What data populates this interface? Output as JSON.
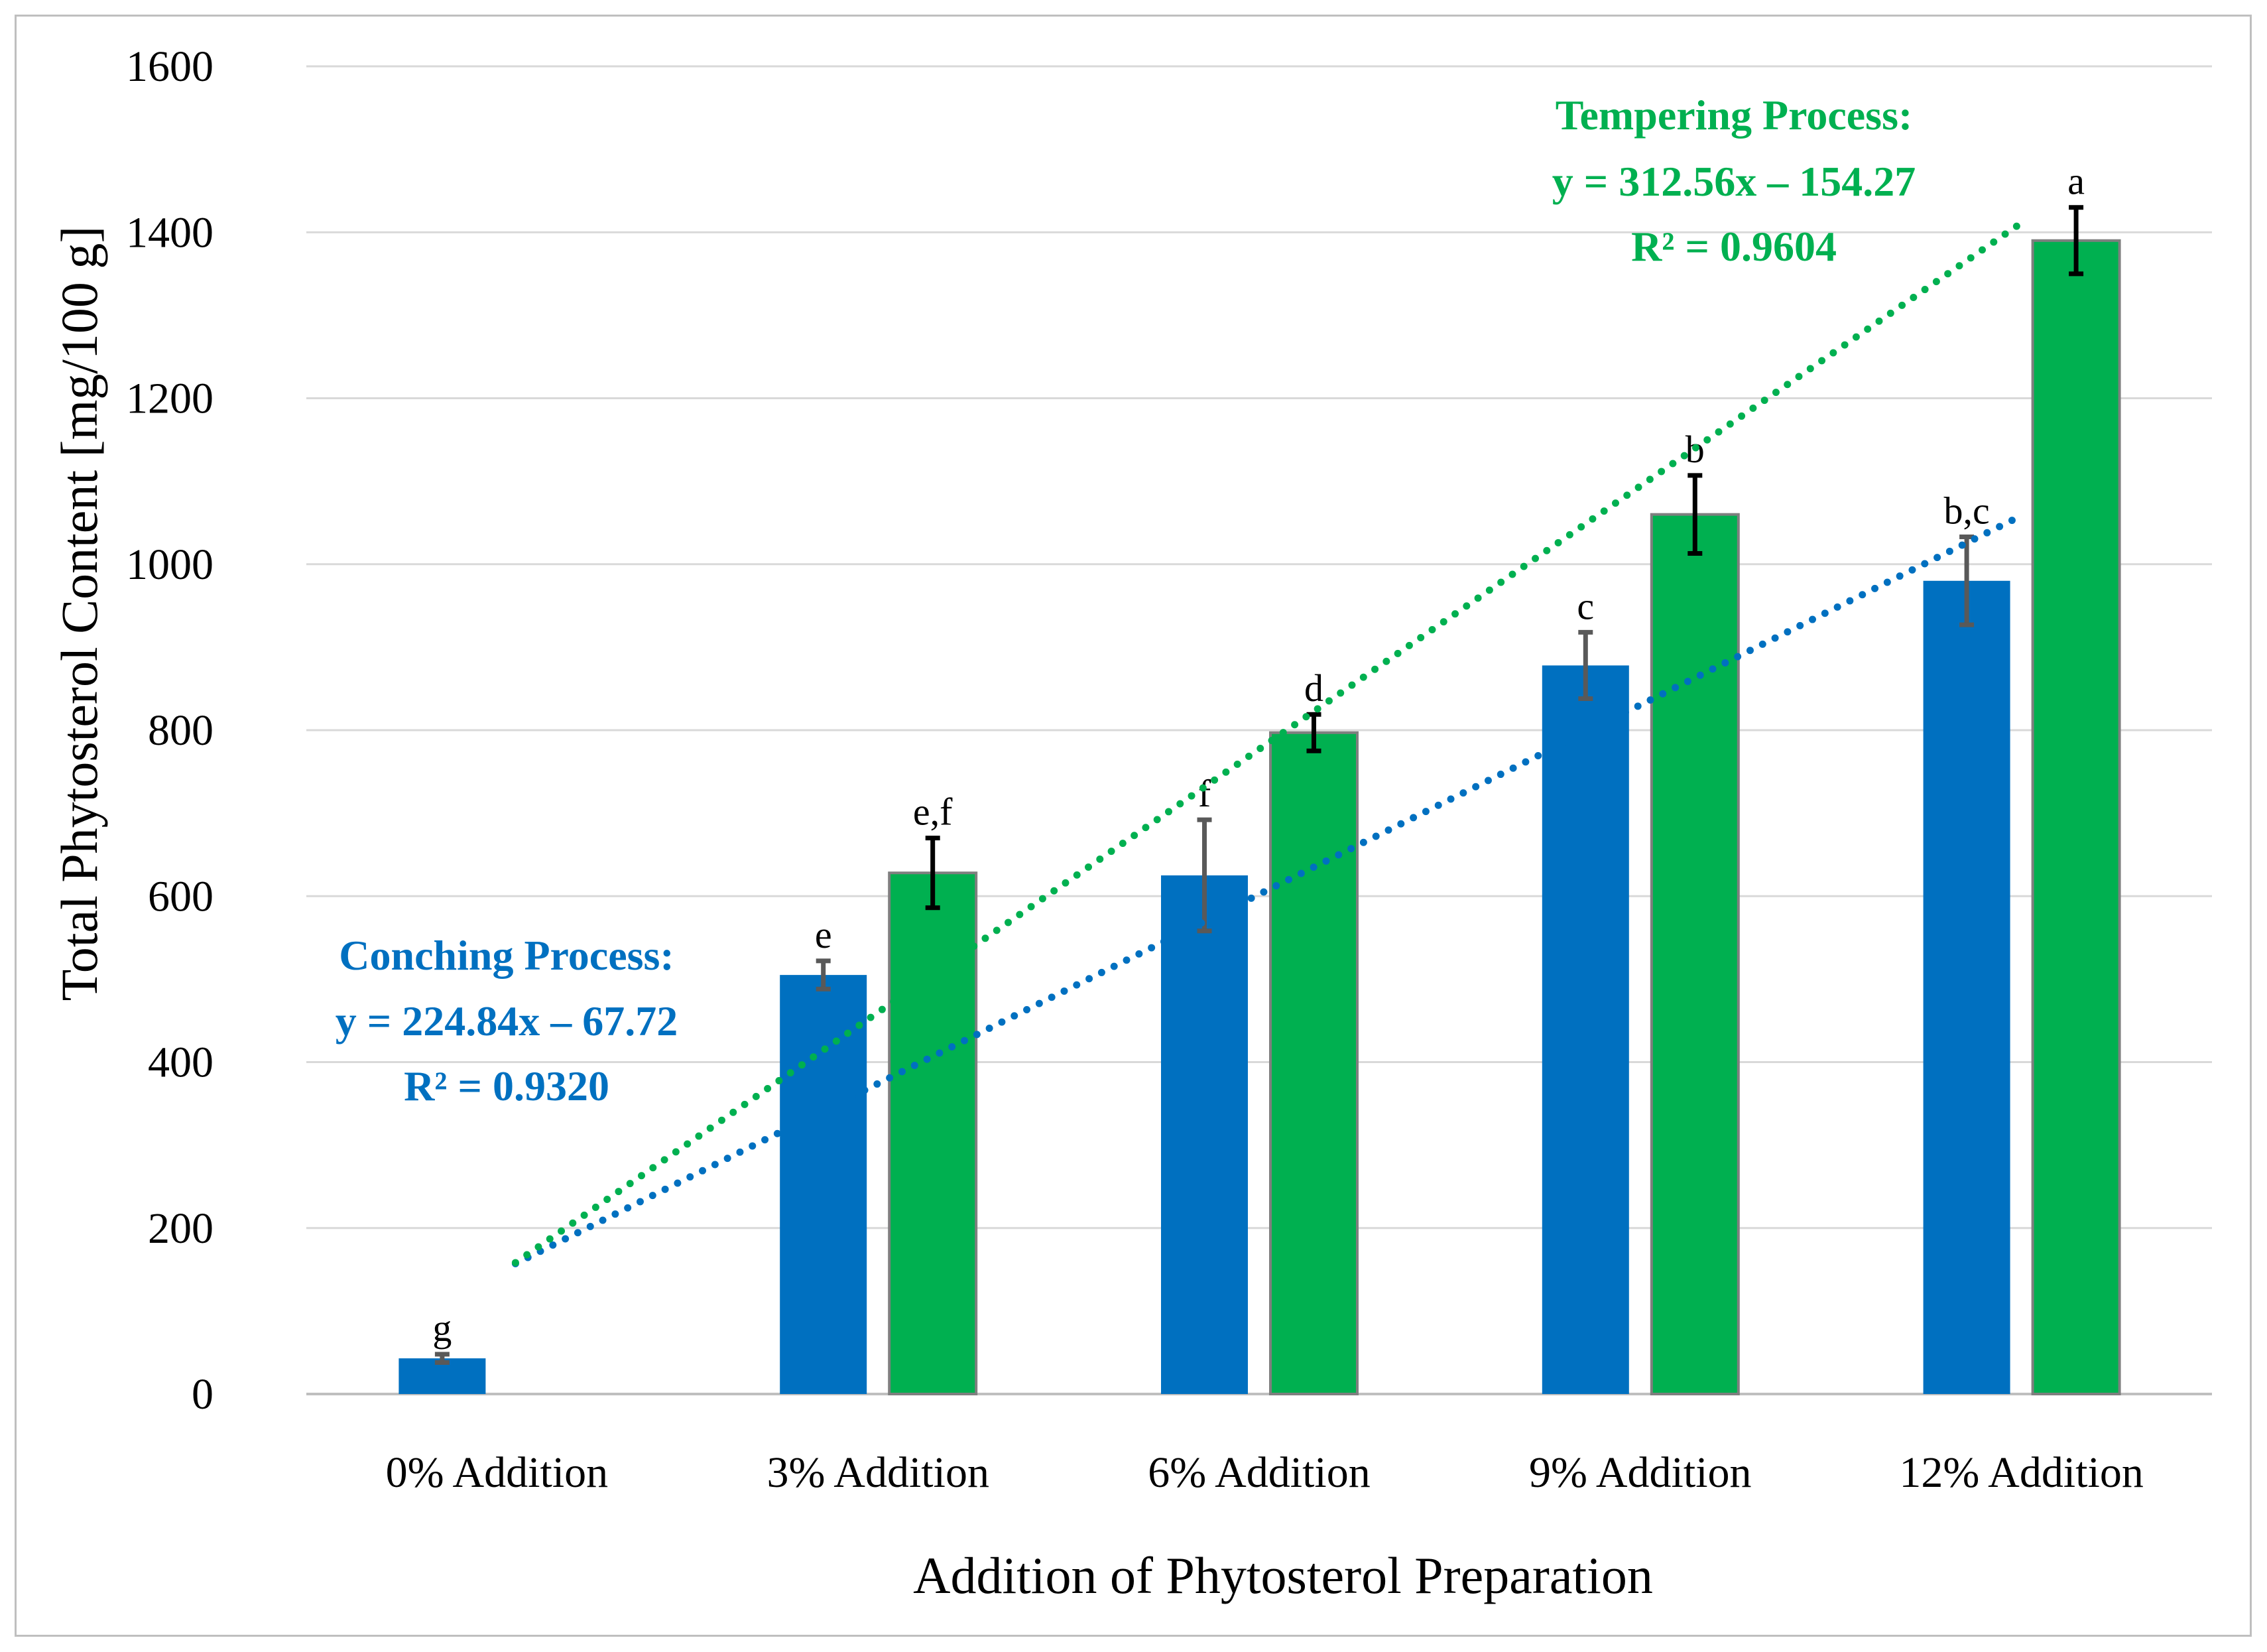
{
  "chart_data": {
    "type": "bar",
    "title": "",
    "xlabel": "Addition of Phytosterol Preparation",
    "ylabel": "Total Phytosterol Content [mg/100 g]",
    "ylim": [
      0,
      1600
    ],
    "yticks": [
      0,
      200,
      400,
      600,
      800,
      1000,
      1200,
      1400,
      1600
    ],
    "ytick_labels": [
      "0",
      "200",
      "400",
      "600",
      "800",
      "1000",
      "1200",
      "1400",
      "1600"
    ],
    "grid": true,
    "categories": [
      "0% Addition",
      "3% Addition",
      "6% Addition",
      "9% Addition",
      "12% Addition"
    ],
    "series": [
      {
        "name": "Conching Process",
        "color": "#0070c0",
        "values": [
          43,
          505,
          625,
          878,
          980
        ],
        "errors": [
          5,
          17,
          67,
          40,
          53
        ],
        "labels": [
          "g",
          "e",
          "f",
          "c",
          "b,c"
        ]
      },
      {
        "name": "Tempering Process",
        "color": "#00b050",
        "values": [
          null,
          628,
          797,
          1060,
          1390
        ],
        "errors": [
          null,
          42,
          22,
          47,
          40
        ],
        "labels": [
          null,
          "e,f",
          "d",
          "b",
          "a"
        ]
      }
    ],
    "trendlines": [
      {
        "series": "Conching Process",
        "color": "#0070c0",
        "slope": 224.84,
        "intercept": -67.72,
        "equation": "y = 224.84x – 67.72",
        "r2": "R² = 0.9320",
        "header": "Conching Process:",
        "x_start": 1,
        "x_end": 5
      },
      {
        "series": "Tempering Process",
        "color": "#00b050",
        "slope": 312.56,
        "intercept": -154.27,
        "equation": "y = 312.56x – 154.27",
        "r2": "R² = 0.9604",
        "header": "Tempering Process:",
        "x_start": 1,
        "x_end": 5
      }
    ]
  }
}
